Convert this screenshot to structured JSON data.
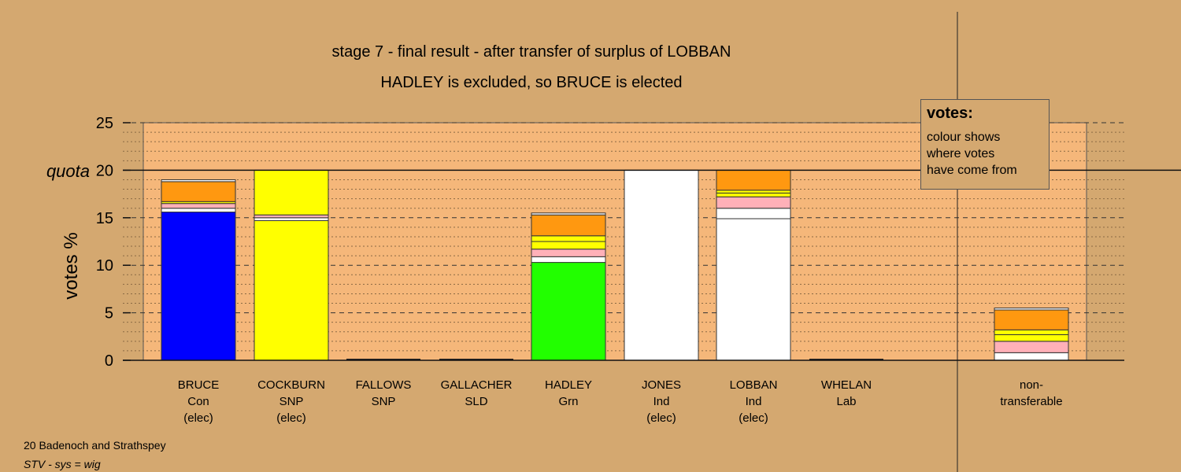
{
  "titles": {
    "line1": "stage 7 - final result - after transfer of surplus of LOBBAN",
    "line2": "HADLEY is excluded, so BRUCE is elected"
  },
  "legend": {
    "heading": "votes:",
    "lines": [
      "colour shows",
      "where votes",
      "have come from"
    ]
  },
  "footer": {
    "line1": "20 Badenoch and Strathspey",
    "line2": "STV - sys = wig"
  },
  "colors": {
    "background": "#d4a870",
    "plot_area": "#f5b77a",
    "Con": "#0000ff",
    "SNP": "#ffff00",
    "Grn": "#22ff00",
    "Ind": "#ffffff",
    "pink": "#ffb0b8",
    "orange": "#ff9810",
    "LOBBAN": "#ffffff"
  },
  "chart_data": {
    "type": "bar",
    "stacked": true,
    "ylabel": "votes %",
    "ylim": [
      0,
      25
    ],
    "yticks": [
      0,
      5,
      10,
      15,
      20,
      25
    ],
    "quota": 20,
    "quota_label": "quota",
    "categories": [
      {
        "name": "BRUCE",
        "party": "Con",
        "status": "(elec)"
      },
      {
        "name": "COCKBURN",
        "party": "SNP",
        "status": "(elec)"
      },
      {
        "name": "FALLOWS",
        "party": "SNP",
        "status": ""
      },
      {
        "name": "GALLACHER",
        "party": "SLD",
        "status": ""
      },
      {
        "name": "HADLEY",
        "party": "Grn",
        "status": ""
      },
      {
        "name": "JONES",
        "party": "Ind",
        "status": "(elec)"
      },
      {
        "name": "LOBBAN",
        "party": "Ind",
        "status": "(elec)"
      },
      {
        "name": "WHELAN",
        "party": "Lab",
        "status": ""
      },
      {
        "name": "non-",
        "party": "transferable",
        "status": ""
      }
    ],
    "stacks": [
      [
        {
          "source": "Con",
          "value": 15.6,
          "color": "#0000ff"
        },
        {
          "source": "Ind",
          "value": 0.4,
          "color": "#ffffff"
        },
        {
          "source": "pink",
          "value": 0.5,
          "color": "#ffb0b8"
        },
        {
          "source": "SNP",
          "value": 0.2,
          "color": "#ffff00"
        },
        {
          "source": "orange",
          "value": 2.1,
          "color": "#ff9810"
        },
        {
          "source": "LOBBAN",
          "value": 0.2,
          "color": "#ffffff"
        }
      ],
      [
        {
          "source": "SNP",
          "value": 14.7,
          "color": "#ffff00"
        },
        {
          "source": "Ind",
          "value": 0.3,
          "color": "#ffffff"
        },
        {
          "source": "pink",
          "value": 0.3,
          "color": "#ffb0b8"
        },
        {
          "source": "SNP",
          "value": 4.7,
          "color": "#ffff00"
        }
      ],
      [],
      [],
      [
        {
          "source": "Grn",
          "value": 10.3,
          "color": "#22ff00"
        },
        {
          "source": "Ind",
          "value": 0.6,
          "color": "#ffffff"
        },
        {
          "source": "pink",
          "value": 0.8,
          "color": "#ffb0b8"
        },
        {
          "source": "SNP",
          "value": 0.8,
          "color": "#ffff00"
        },
        {
          "source": "SNP",
          "value": 0.6,
          "color": "#ffff00"
        },
        {
          "source": "orange",
          "value": 2.2,
          "color": "#ff9810"
        },
        {
          "source": "LOBBAN",
          "value": 0.2,
          "color": "#ffffff"
        }
      ],
      [
        {
          "source": "Ind",
          "value": 20.0,
          "color": "#ffffff"
        }
      ],
      [
        {
          "source": "Ind",
          "value": 14.9,
          "color": "#ffffff"
        },
        {
          "source": "Ind",
          "value": 1.1,
          "color": "#ffffff"
        },
        {
          "source": "pink",
          "value": 1.2,
          "color": "#ffb0b8"
        },
        {
          "source": "SNP",
          "value": 0.4,
          "color": "#ffff00"
        },
        {
          "source": "SNP",
          "value": 0.3,
          "color": "#ffff00"
        },
        {
          "source": "orange",
          "value": 2.1,
          "color": "#ff9810"
        }
      ],
      [],
      [
        {
          "source": "Ind",
          "value": 0.8,
          "color": "#ffffff"
        },
        {
          "source": "pink",
          "value": 1.2,
          "color": "#ffb0b8"
        },
        {
          "source": "SNP",
          "value": 0.7,
          "color": "#ffff00"
        },
        {
          "source": "SNP",
          "value": 0.5,
          "color": "#ffff00"
        },
        {
          "source": "orange",
          "value": 2.1,
          "color": "#ff9810"
        },
        {
          "source": "LOBBAN",
          "value": 0.2,
          "color": "#ffffff"
        }
      ]
    ]
  }
}
